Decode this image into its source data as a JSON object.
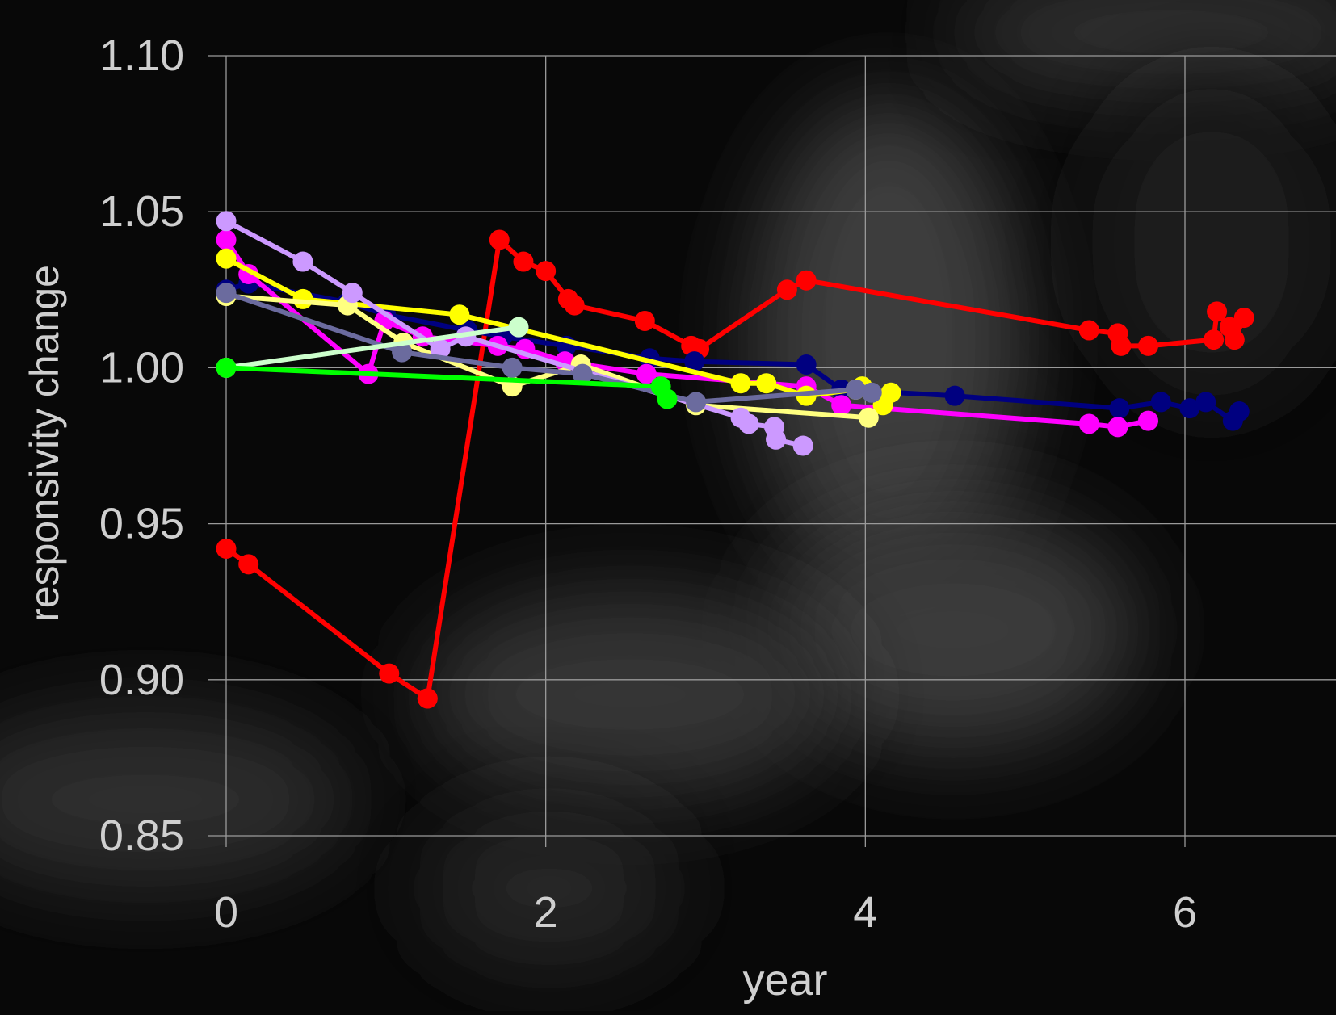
{
  "chart_data": {
    "type": "line",
    "title": "",
    "xlabel": "year",
    "ylabel": "responsivity change",
    "xlim": [
      0,
      7
    ],
    "ylim": [
      0.85,
      1.1
    ],
    "x_ticks": [
      0,
      2,
      4,
      6
    ],
    "x_tick_labels": [
      "0",
      "2",
      "4",
      "6"
    ],
    "y_ticks": [
      0.85,
      0.9,
      0.95,
      1.0,
      1.05,
      1.1
    ],
    "y_tick_labels": [
      "0.85",
      "0.90",
      "0.95",
      "1.00",
      "1.05",
      "1.10"
    ],
    "grid": true,
    "legend": "none",
    "background_color": "#080808",
    "grid_color": "#9a9a9a",
    "text_color": "#cfcfcf",
    "series": [
      {
        "color": "#ff0000",
        "x": [
          0.0,
          0.14,
          1.02,
          1.26
        ],
        "y": [
          0.942,
          0.937,
          0.902,
          0.894
        ]
      },
      {
        "color": "#ff0000",
        "x": [
          1.26,
          1.71,
          1.86,
          2.0,
          2.14,
          2.18,
          2.62,
          2.91,
          2.96,
          3.51,
          3.63,
          5.4,
          5.58,
          5.6,
          5.77,
          6.18,
          6.2,
          6.28,
          6.31,
          6.37
        ],
        "y": [
          0.894,
          1.041,
          1.034,
          1.031,
          1.022,
          1.02,
          1.015,
          1.007,
          1.006,
          1.025,
          1.028,
          1.012,
          1.011,
          1.007,
          1.007,
          1.009,
          1.018,
          1.013,
          1.009,
          1.016
        ]
      },
      {
        "color": "#000080",
        "x": [
          0.0,
          0.14,
          0.76,
          1.0,
          1.51,
          1.73,
          2.13,
          2.65,
          2.93,
          3.63,
          3.85,
          4.56,
          5.59,
          5.85,
          6.03,
          6.13,
          6.3,
          6.34
        ],
        "y": [
          1.025,
          1.027,
          1.021,
          1.017,
          1.012,
          1.01,
          1.007,
          1.003,
          1.002,
          1.001,
          0.993,
          0.991,
          0.987,
          0.989,
          0.987,
          0.989,
          0.983,
          0.986
        ]
      },
      {
        "color": "#ff00ff",
        "x": [
          0.0,
          0.14,
          0.89,
          0.99,
          1.23,
          1.7,
          1.87,
          2.12,
          2.63,
          3.63,
          3.85,
          5.4,
          5.58,
          5.77
        ],
        "y": [
          1.041,
          1.03,
          0.998,
          1.015,
          1.01,
          1.007,
          1.006,
          1.002,
          0.998,
          0.994,
          0.988,
          0.982,
          0.981,
          0.983
        ]
      },
      {
        "color": "#ffff00",
        "x": [
          0.0,
          0.48,
          1.46,
          3.22,
          3.38,
          3.63,
          3.94,
          3.98,
          4.11,
          4.16
        ],
        "y": [
          1.035,
          1.022,
          1.017,
          0.995,
          0.995,
          0.991,
          0.993,
          0.994,
          0.988,
          0.992
        ]
      },
      {
        "color": "#ffff80",
        "x": [
          0.0,
          0.76,
          1.11,
          1.79,
          2.22,
          2.94,
          4.02
        ],
        "y": [
          1.023,
          1.02,
          1.008,
          0.994,
          1.001,
          0.988,
          0.984
        ]
      },
      {
        "color": "#cc99ff",
        "x": [
          0.0,
          0.48,
          0.79,
          1.34,
          1.5,
          3.22,
          3.27,
          3.43,
          3.44,
          3.61
        ],
        "y": [
          1.047,
          1.034,
          1.024,
          1.006,
          1.01,
          0.984,
          0.982,
          0.981,
          0.977,
          0.975
        ]
      },
      {
        "color": "#6b6b9e",
        "x": [
          0.0,
          1.1,
          1.79,
          2.23,
          2.94,
          3.94,
          4.04
        ],
        "y": [
          1.024,
          1.005,
          1.0,
          0.998,
          0.989,
          0.993,
          0.992
        ]
      },
      {
        "color": "#ccffcc",
        "x": [
          0.0,
          1.83
        ],
        "y": [
          1.0,
          1.013
        ]
      },
      {
        "color": "#00ff00",
        "x": [
          0.0,
          2.72,
          2.76
        ],
        "y": [
          1.0,
          0.994,
          0.99
        ]
      }
    ]
  }
}
